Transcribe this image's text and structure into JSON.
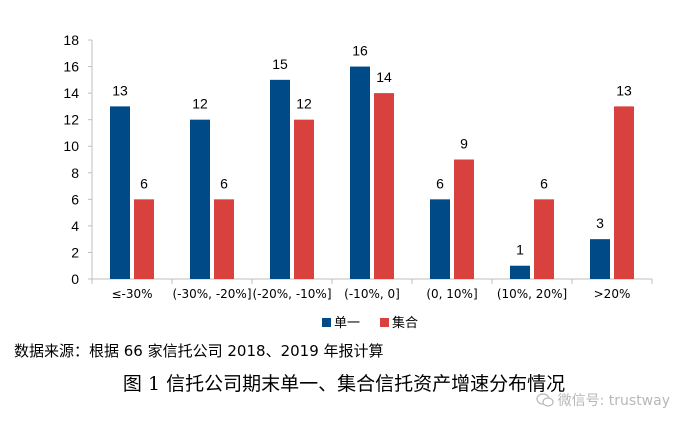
{
  "chart_data": {
    "type": "bar",
    "categories": [
      "≤-30%",
      "(-30%, -20%]",
      "(-20%, -10%]",
      "(-10%, 0]",
      "(0, 10%]",
      "(10%, 20%]",
      ">20%"
    ],
    "series": [
      {
        "name": "单一",
        "values": [
          13,
          12,
          15,
          16,
          6,
          1,
          3
        ],
        "color": "#004b87"
      },
      {
        "name": "集合",
        "values": [
          6,
          6,
          12,
          14,
          9,
          6,
          13
        ],
        "color": "#d9413f"
      }
    ],
    "yticks": [
      0,
      2,
      4,
      6,
      8,
      10,
      12,
      14,
      16,
      18
    ],
    "ylim": [
      0,
      18
    ],
    "title": "",
    "xlabel": "",
    "ylabel": "",
    "legend_position": "bottom-center",
    "grid": false
  },
  "source_note": "数据来源：根据 66 家信托公司 2018、2019 年报计算",
  "caption": "图 1   信托公司期末单一、集合信托资产增速分布情况",
  "watermark": "微信号: trustway"
}
